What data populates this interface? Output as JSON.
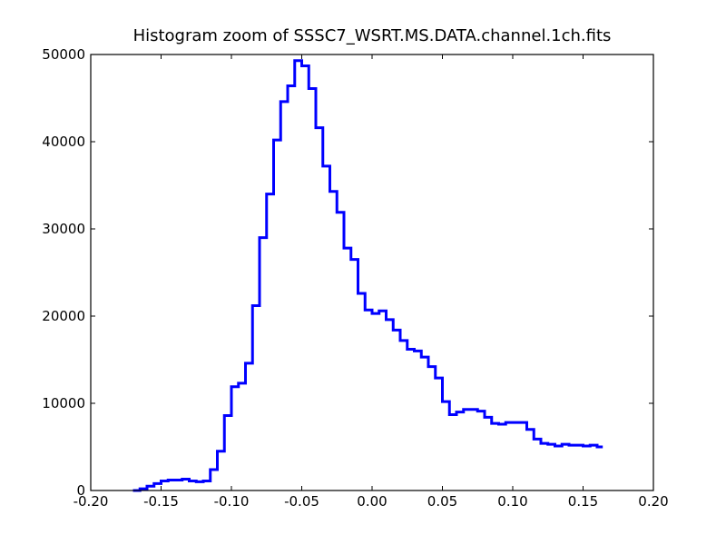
{
  "chart_data": {
    "type": "line",
    "style": "step",
    "title": "Histogram zoom of SSSC7_WSRT.MS.DATA.channel.1ch.fits",
    "xlabel": "",
    "ylabel": "",
    "xlim": [
      -0.2,
      0.2
    ],
    "ylim": [
      0,
      50000
    ],
    "x_ticks": [
      -0.2,
      -0.15,
      -0.1,
      -0.05,
      0.0,
      0.05,
      0.1,
      0.15,
      0.2
    ],
    "x_tick_labels": [
      "-0.20",
      "-0.15",
      "-0.10",
      "-0.05",
      "0.00",
      "0.05",
      "0.10",
      "0.15",
      "0.20"
    ],
    "y_ticks": [
      0,
      10000,
      20000,
      30000,
      40000,
      50000
    ],
    "y_tick_labels": [
      "0",
      "10000",
      "20000",
      "30000",
      "40000",
      "50000"
    ],
    "grid": false,
    "series": [
      {
        "color": "#0000ff",
        "x": [
          -0.17,
          -0.165,
          -0.16,
          -0.155,
          -0.15,
          -0.145,
          -0.14,
          -0.135,
          -0.13,
          -0.125,
          -0.12,
          -0.115,
          -0.11,
          -0.105,
          -0.1,
          -0.095,
          -0.09,
          -0.085,
          -0.08,
          -0.075,
          -0.07,
          -0.065,
          -0.06,
          -0.055,
          -0.05,
          -0.045,
          -0.04,
          -0.035,
          -0.03,
          -0.025,
          -0.02,
          -0.015,
          -0.01,
          -0.005,
          0.0,
          0.005,
          0.01,
          0.015,
          0.02,
          0.025,
          0.03,
          0.035,
          0.04,
          0.045,
          0.05,
          0.055,
          0.06,
          0.065,
          0.07,
          0.075,
          0.08,
          0.085,
          0.09,
          0.095,
          0.1,
          0.105,
          0.11,
          0.115,
          0.12,
          0.125,
          0.13,
          0.135,
          0.14,
          0.145,
          0.15,
          0.155,
          0.16,
          0.164
        ],
        "y": [
          0,
          200,
          500,
          800,
          1100,
          1200,
          1200,
          1300,
          1100,
          1000,
          1100,
          2400,
          4500,
          8600,
          11900,
          12300,
          14600,
          21200,
          29000,
          34000,
          40200,
          44600,
          46400,
          49300,
          48700,
          46100,
          41600,
          37200,
          34300,
          31900,
          27800,
          26500,
          22600,
          20700,
          20300,
          20600,
          19600,
          18400,
          17200,
          16200,
          16000,
          15300,
          14200,
          12900,
          10200,
          8700,
          9000,
          9300,
          9300,
          9100,
          8400,
          7700,
          7600,
          7800,
          7800,
          7800,
          7000,
          5900,
          5400,
          5300,
          5100,
          5300,
          5200,
          5200,
          5100,
          5200,
          5000,
          5000
        ]
      }
    ]
  }
}
